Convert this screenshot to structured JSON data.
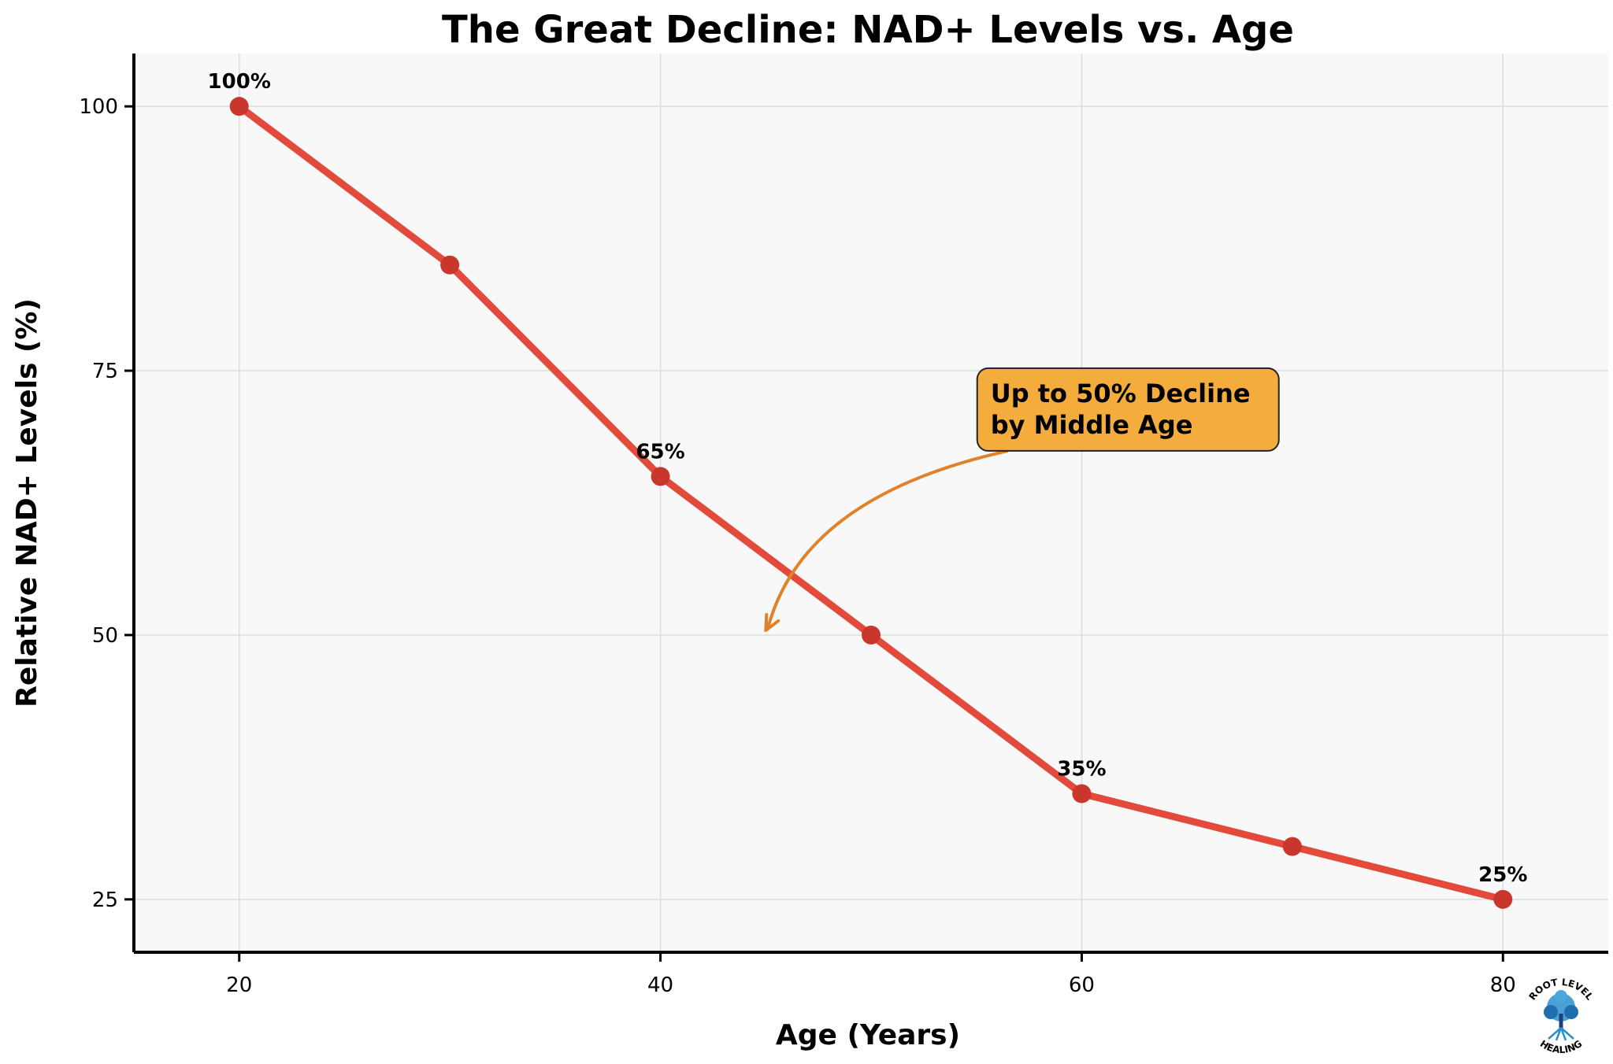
{
  "chart_data": {
    "type": "line",
    "title": "The Great Decline: NAD+ Levels vs. Age",
    "xlabel": "Age (Years)",
    "ylabel": "Relative NAD+ Levels (%)",
    "xlim": [
      15,
      85
    ],
    "ylim": [
      20,
      105
    ],
    "xticks": [
      20,
      40,
      60,
      80
    ],
    "yticks": [
      25,
      50,
      75,
      100
    ],
    "grid": true,
    "series": [
      {
        "x": [
          20,
          30,
          40,
          50,
          60,
          70,
          80
        ],
        "y": [
          100,
          85,
          65,
          50,
          35,
          30,
          25
        ],
        "color": "#e24a3b",
        "marker_color": "#c9372c"
      }
    ],
    "data_labels": [
      {
        "x": 20,
        "y": 100,
        "text": "100%"
      },
      {
        "x": 40,
        "y": 65,
        "text": "65%"
      },
      {
        "x": 60,
        "y": 35,
        "text": "35%"
      },
      {
        "x": 80,
        "y": 25,
        "text": "25%"
      }
    ],
    "annotation": {
      "lines": [
        "Up to 50% Decline",
        "by Middle Age"
      ],
      "box_color": "#f4ad3d",
      "arrow_color": "#e0822a",
      "arrow_target": {
        "x": 45,
        "y": 50
      },
      "text_anchor": {
        "x": 55,
        "y": 73
      }
    },
    "plot_background": "#f8f8f8",
    "grid_color": "#dcdcdc"
  },
  "logo": {
    "text_top": "ROOT LEVEL",
    "text_bottom": "HEALING",
    "color": "#1f3f7a",
    "accent": "#2a8fcf"
  }
}
